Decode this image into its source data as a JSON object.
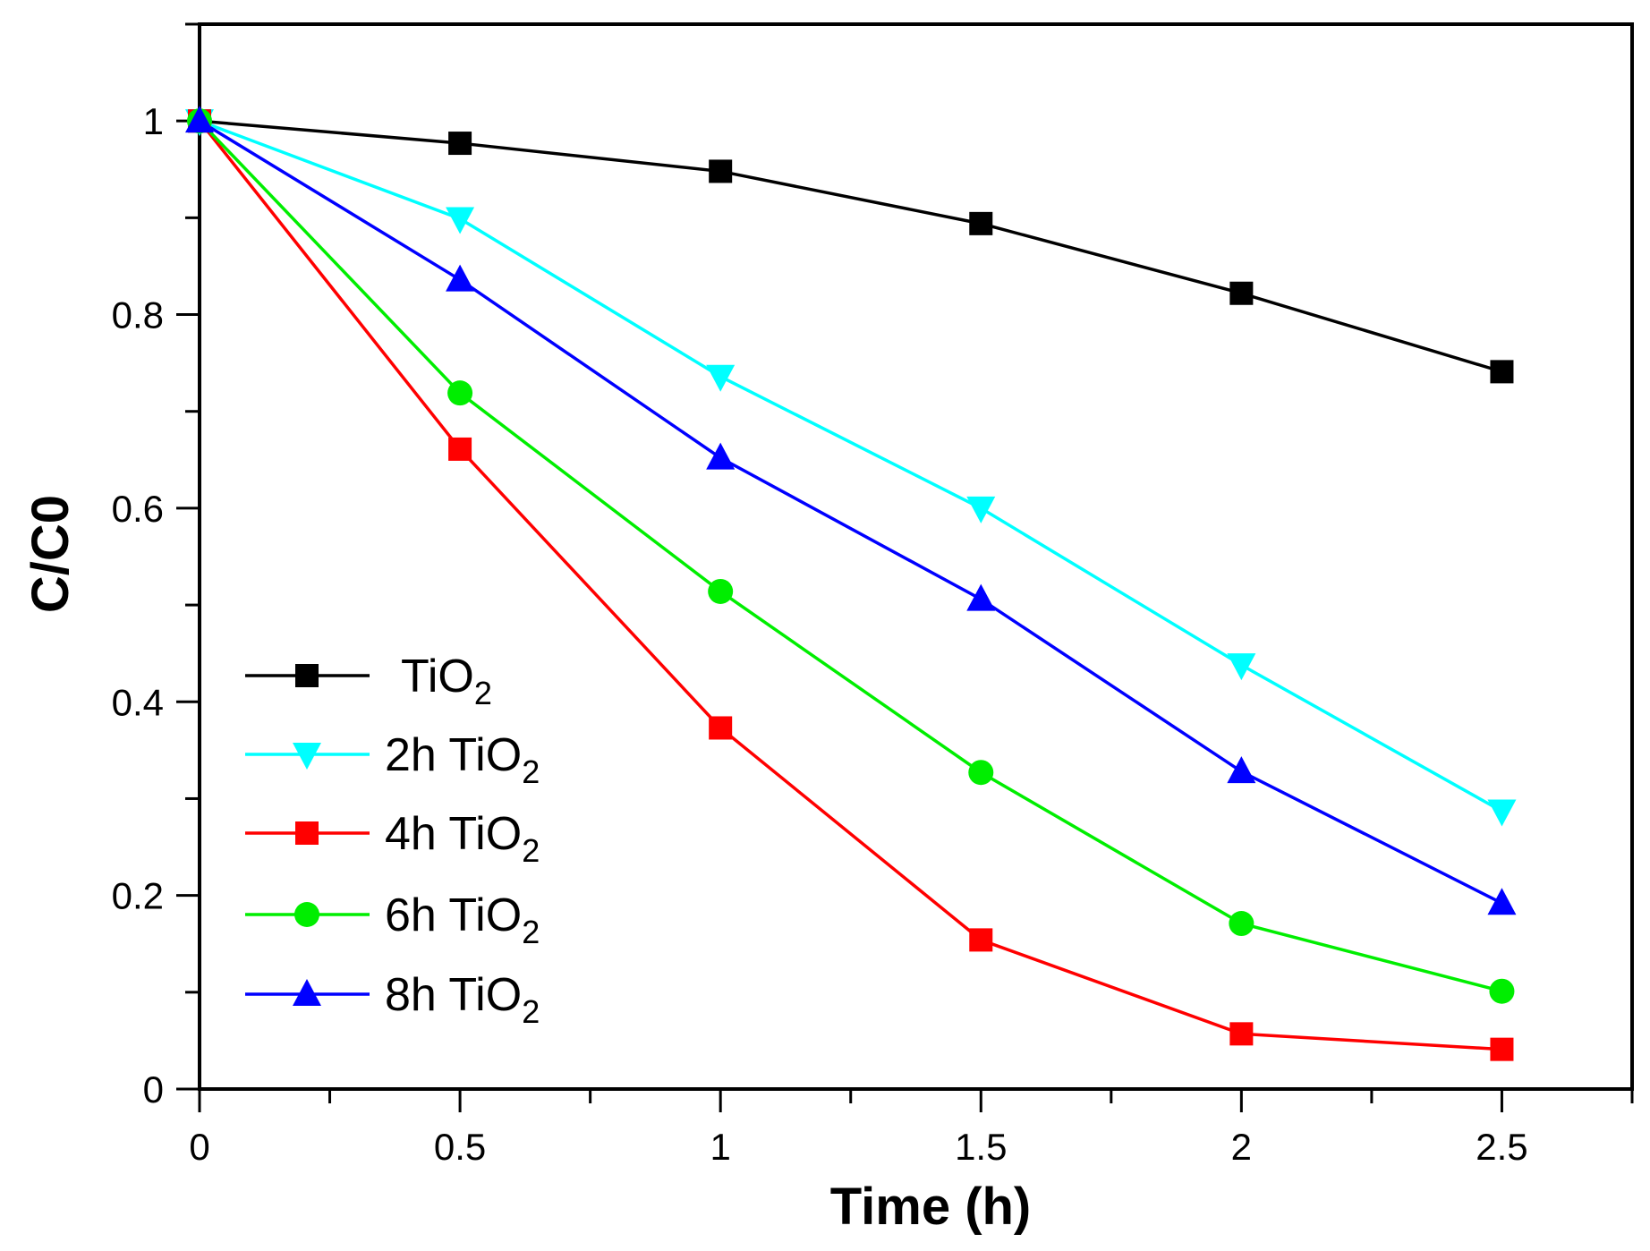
{
  "chart_data": {
    "type": "line",
    "title": "",
    "xlabel": "Time (h)",
    "ylabel": "C/C0",
    "xlim": [
      0,
      2.75
    ],
    "ylim": [
      0,
      1.1
    ],
    "xticks": [
      0,
      0.5,
      1,
      1.5,
      2,
      2.5
    ],
    "xtick_labels": [
      "0",
      "0.5",
      "1",
      "1.5",
      "2",
      "2.5"
    ],
    "yticks": [
      0,
      0.2,
      0.4,
      0.6,
      0.8,
      1
    ],
    "ytick_labels": [
      "0",
      "0.2",
      "0.4",
      "0.6",
      "0.8",
      "1"
    ],
    "grid": false,
    "legend_position": "bottom-left",
    "x": [
      0,
      0.5,
      1,
      1.5,
      2,
      2.5
    ],
    "series": [
      {
        "name": "TiO2",
        "prefix": "",
        "color": "#000000",
        "marker": "square",
        "values": [
          1,
          0.977,
          0.948,
          0.894,
          0.822,
          0.741
        ]
      },
      {
        "name": "2h TiO2",
        "prefix": "2h ",
        "color": "#00FFFF",
        "marker": "triangle-down",
        "values": [
          1,
          0.899,
          0.736,
          0.6,
          0.438,
          0.287
        ]
      },
      {
        "name": "4h TiO2",
        "prefix": "4h ",
        "color": "#FF0000",
        "marker": "square",
        "values": [
          1,
          0.661,
          0.373,
          0.154,
          0.057,
          0.041
        ]
      },
      {
        "name": "6h TiO2",
        "prefix": "6h ",
        "color": "#00EE00",
        "marker": "circle",
        "values": [
          1,
          0.719,
          0.514,
          0.327,
          0.171,
          0.101
        ]
      },
      {
        "name": "8h TiO2",
        "prefix": "8h ",
        "color": "#0000FF",
        "marker": "triangle-up",
        "values": [
          1,
          0.836,
          0.652,
          0.506,
          0.328,
          0.192
        ]
      }
    ]
  }
}
